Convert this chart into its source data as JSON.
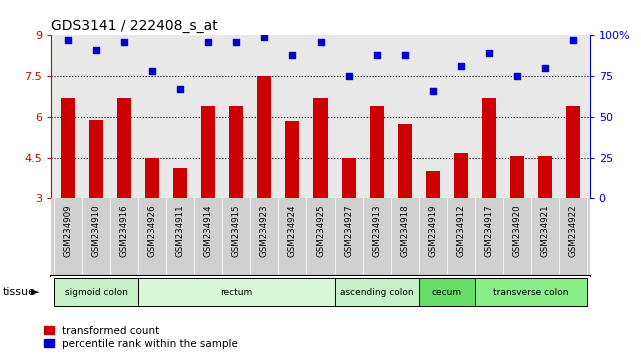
{
  "title": "GDS3141 / 222408_s_at",
  "samples": [
    "GSM234909",
    "GSM234910",
    "GSM234916",
    "GSM234926",
    "GSM234911",
    "GSM234914",
    "GSM234915",
    "GSM234923",
    "GSM234924",
    "GSM234925",
    "GSM234927",
    "GSM234913",
    "GSM234918",
    "GSM234919",
    "GSM234912",
    "GSM234917",
    "GSM234920",
    "GSM234921",
    "GSM234922"
  ],
  "bar_values": [
    6.7,
    5.9,
    6.7,
    4.5,
    4.1,
    6.4,
    6.4,
    7.5,
    5.85,
    6.7,
    4.5,
    6.4,
    5.75,
    4.0,
    4.65,
    6.7,
    4.55,
    4.55,
    6.4
  ],
  "dot_values": [
    97,
    91,
    96,
    78,
    67,
    96,
    96,
    99,
    88,
    96,
    75,
    88,
    88,
    66,
    81,
    89,
    75,
    80,
    97
  ],
  "ylim_left": [
    3,
    9
  ],
  "ylim_right": [
    0,
    100
  ],
  "yticks_left": [
    3,
    4.5,
    6.0,
    7.5,
    9
  ],
  "yticks_right": [
    0,
    25,
    50,
    75,
    100
  ],
  "ytick_labels_left": [
    "3",
    "4.5",
    "6",
    "7.5",
    "9"
  ],
  "ytick_labels_right": [
    "0",
    "25",
    "50",
    "75",
    "100%"
  ],
  "hlines": [
    4.5,
    6.0,
    7.5
  ],
  "bar_color": "#cc0000",
  "dot_color": "#0000cc",
  "tissue_groups": [
    {
      "label": "sigmoid colon",
      "start": 0,
      "end": 3,
      "color": "#c8f0c8"
    },
    {
      "label": "rectum",
      "start": 3,
      "end": 10,
      "color": "#d8f8d8"
    },
    {
      "label": "ascending colon",
      "start": 10,
      "end": 13,
      "color": "#c8f0c8"
    },
    {
      "label": "cecum",
      "start": 13,
      "end": 15,
      "color": "#66dd66"
    },
    {
      "label": "transverse colon",
      "start": 15,
      "end": 19,
      "color": "#88ee88"
    }
  ],
  "legend_red_label": "transformed count",
  "legend_blue_label": "percentile rank within the sample",
  "tissue_label": "tissue",
  "bg_color_axes": "#e8e8e8",
  "bg_color_fig": "#ffffff",
  "bar_width": 0.5
}
